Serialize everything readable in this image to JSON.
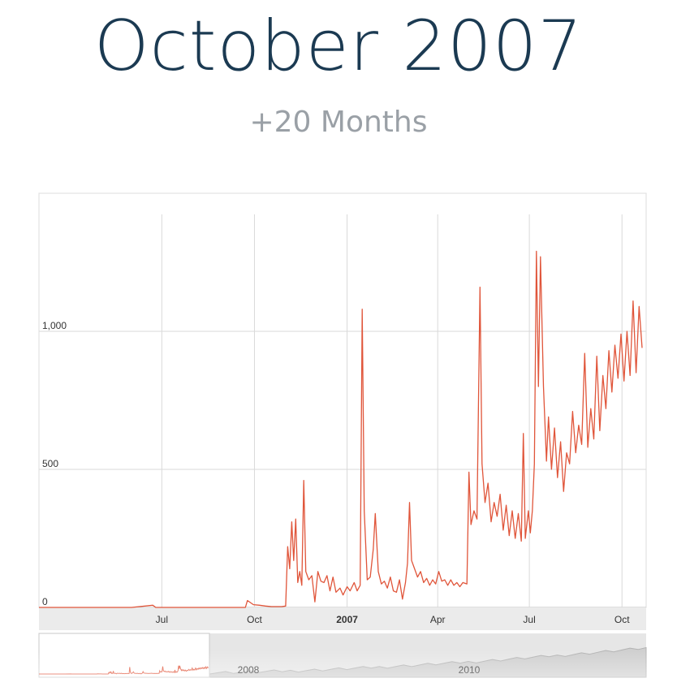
{
  "header": {
    "title": "October 2007",
    "subtitle": "+20 Months"
  },
  "colors": {
    "title": "#1b3a52",
    "subtitle": "#9aa0a6",
    "series": "#e0553a",
    "grid": "#d9d9d9",
    "axis_band": "#ebebeb",
    "navigator_bg": "#e6e6e6",
    "navigator_series": "#aaaaaa"
  },
  "chart_data": {
    "type": "line",
    "title": "",
    "xlabel": "",
    "ylabel": "",
    "ylim": [
      0,
      1500
    ],
    "xlim": [
      "2006-03-01",
      "2007-10-25"
    ],
    "grid": true,
    "legend": "none",
    "y_ticks": [
      {
        "value": 0,
        "label": "0"
      },
      {
        "value": 500,
        "label": "500"
      },
      {
        "value": 1000,
        "label": "1,000"
      }
    ],
    "x_ticks": [
      {
        "date": "2006-07-01",
        "label": "Jul",
        "bold": false
      },
      {
        "date": "2006-10-01",
        "label": "Oct",
        "bold": false
      },
      {
        "date": "2007-01-01",
        "label": "2007",
        "bold": true
      },
      {
        "date": "2007-04-01",
        "label": "Apr",
        "bold": false
      },
      {
        "date": "2007-07-01",
        "label": "Jul",
        "bold": false
      },
      {
        "date": "2007-10-01",
        "label": "Oct",
        "bold": false
      }
    ],
    "series": [
      {
        "points": [
          [
            "2006-03-01",
            0
          ],
          [
            "2006-06-01",
            0
          ],
          [
            "2006-06-22",
            8
          ],
          [
            "2006-06-25",
            0
          ],
          [
            "2006-09-22",
            0
          ],
          [
            "2006-09-24",
            25
          ],
          [
            "2006-09-30",
            10
          ],
          [
            "2006-10-06",
            8
          ],
          [
            "2006-10-12",
            5
          ],
          [
            "2006-10-18",
            3
          ],
          [
            "2006-10-28",
            3
          ],
          [
            "2006-11-01",
            5
          ],
          [
            "2006-11-03",
            220
          ],
          [
            "2006-11-05",
            140
          ],
          [
            "2006-11-07",
            310
          ],
          [
            "2006-11-09",
            170
          ],
          [
            "2006-11-11",
            320
          ],
          [
            "2006-11-13",
            90
          ],
          [
            "2006-11-15",
            130
          ],
          [
            "2006-11-17",
            80
          ],
          [
            "2006-11-19",
            460
          ],
          [
            "2006-11-21",
            130
          ],
          [
            "2006-11-24",
            100
          ],
          [
            "2006-11-27",
            115
          ],
          [
            "2006-11-30",
            20
          ],
          [
            "2006-12-03",
            130
          ],
          [
            "2006-12-06",
            95
          ],
          [
            "2006-12-09",
            90
          ],
          [
            "2006-12-12",
            115
          ],
          [
            "2006-12-15",
            60
          ],
          [
            "2006-12-18",
            110
          ],
          [
            "2006-12-21",
            55
          ],
          [
            "2006-12-25",
            70
          ],
          [
            "2006-12-28",
            45
          ],
          [
            "2007-01-01",
            75
          ],
          [
            "2007-01-04",
            60
          ],
          [
            "2007-01-08",
            90
          ],
          [
            "2007-01-11",
            60
          ],
          [
            "2007-01-14",
            80
          ],
          [
            "2007-01-16",
            1080
          ],
          [
            "2007-01-18",
            350
          ],
          [
            "2007-01-21",
            100
          ],
          [
            "2007-01-24",
            110
          ],
          [
            "2007-01-27",
            210
          ],
          [
            "2007-01-29",
            340
          ],
          [
            "2007-02-01",
            130
          ],
          [
            "2007-02-04",
            85
          ],
          [
            "2007-02-07",
            95
          ],
          [
            "2007-02-10",
            70
          ],
          [
            "2007-02-13",
            110
          ],
          [
            "2007-02-16",
            60
          ],
          [
            "2007-02-19",
            55
          ],
          [
            "2007-02-22",
            100
          ],
          [
            "2007-02-25",
            30
          ],
          [
            "2007-02-28",
            90
          ],
          [
            "2007-03-02",
            160
          ],
          [
            "2007-03-04",
            380
          ],
          [
            "2007-03-06",
            170
          ],
          [
            "2007-03-09",
            140
          ],
          [
            "2007-03-12",
            110
          ],
          [
            "2007-03-15",
            130
          ],
          [
            "2007-03-18",
            90
          ],
          [
            "2007-03-21",
            105
          ],
          [
            "2007-03-24",
            80
          ],
          [
            "2007-03-27",
            100
          ],
          [
            "2007-03-30",
            85
          ],
          [
            "2007-04-02",
            130
          ],
          [
            "2007-04-05",
            95
          ],
          [
            "2007-04-08",
            100
          ],
          [
            "2007-04-11",
            80
          ],
          [
            "2007-04-14",
            100
          ],
          [
            "2007-04-17",
            80
          ],
          [
            "2007-04-20",
            90
          ],
          [
            "2007-04-23",
            75
          ],
          [
            "2007-04-26",
            90
          ],
          [
            "2007-04-30",
            85
          ],
          [
            "2007-05-02",
            490
          ],
          [
            "2007-05-04",
            300
          ],
          [
            "2007-05-07",
            350
          ],
          [
            "2007-05-10",
            320
          ],
          [
            "2007-05-13",
            1160
          ],
          [
            "2007-05-15",
            520
          ],
          [
            "2007-05-18",
            380
          ],
          [
            "2007-05-21",
            450
          ],
          [
            "2007-05-24",
            310
          ],
          [
            "2007-05-27",
            380
          ],
          [
            "2007-05-30",
            330
          ],
          [
            "2007-06-02",
            410
          ],
          [
            "2007-06-05",
            280
          ],
          [
            "2007-06-08",
            370
          ],
          [
            "2007-06-11",
            260
          ],
          [
            "2007-06-14",
            350
          ],
          [
            "2007-06-17",
            250
          ],
          [
            "2007-06-20",
            340
          ],
          [
            "2007-06-23",
            240
          ],
          [
            "2007-06-25",
            630
          ],
          [
            "2007-06-27",
            250
          ],
          [
            "2007-06-30",
            350
          ],
          [
            "2007-07-02",
            270
          ],
          [
            "2007-07-04",
            350
          ],
          [
            "2007-07-06",
            520
          ],
          [
            "2007-07-08",
            1290
          ],
          [
            "2007-07-10",
            800
          ],
          [
            "2007-07-12",
            1270
          ],
          [
            "2007-07-15",
            800
          ],
          [
            "2007-07-18",
            530
          ],
          [
            "2007-07-20",
            690
          ],
          [
            "2007-07-23",
            500
          ],
          [
            "2007-07-26",
            650
          ],
          [
            "2007-07-29",
            470
          ],
          [
            "2007-08-01",
            600
          ],
          [
            "2007-08-04",
            420
          ],
          [
            "2007-08-07",
            560
          ],
          [
            "2007-08-10",
            520
          ],
          [
            "2007-08-13",
            710
          ],
          [
            "2007-08-16",
            560
          ],
          [
            "2007-08-19",
            660
          ],
          [
            "2007-08-22",
            590
          ],
          [
            "2007-08-25",
            920
          ],
          [
            "2007-08-28",
            580
          ],
          [
            "2007-08-31",
            720
          ],
          [
            "2007-09-03",
            610
          ],
          [
            "2007-09-06",
            910
          ],
          [
            "2007-09-09",
            640
          ],
          [
            "2007-09-12",
            840
          ],
          [
            "2007-09-15",
            720
          ],
          [
            "2007-09-18",
            930
          ],
          [
            "2007-09-21",
            780
          ],
          [
            "2007-09-24",
            950
          ],
          [
            "2007-09-27",
            830
          ],
          [
            "2007-09-30",
            990
          ],
          [
            "2007-10-03",
            820
          ],
          [
            "2007-10-06",
            1000
          ],
          [
            "2007-10-09",
            840
          ],
          [
            "2007-10-12",
            1110
          ],
          [
            "2007-10-15",
            850
          ],
          [
            "2007-10-18",
            1090
          ],
          [
            "2007-10-21",
            940
          ]
        ]
      }
    ],
    "navigator": {
      "labels": [
        {
          "date": "2008",
          "text": "2008"
        },
        {
          "date": "2010",
          "text": "2010"
        }
      ],
      "range_start": "2006-03-01",
      "range_end": "2007-10-25"
    }
  }
}
